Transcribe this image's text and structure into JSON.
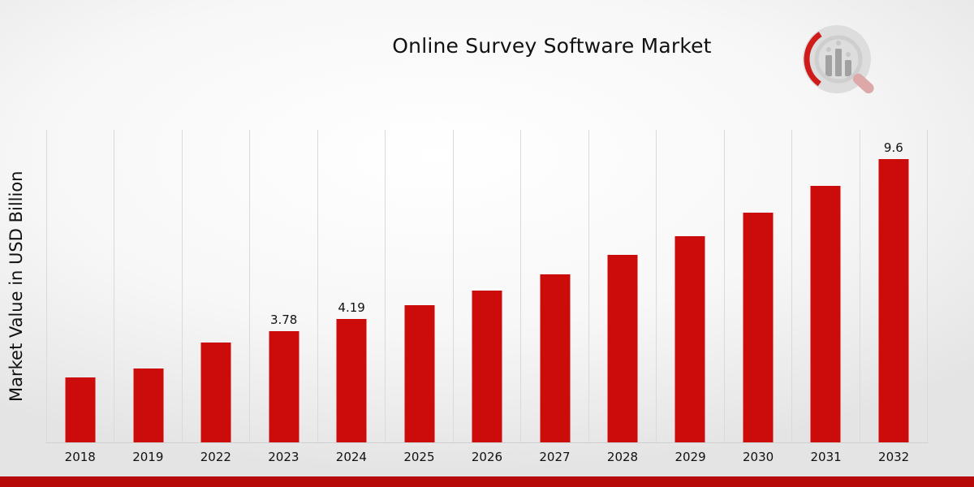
{
  "title": "Online Survey Software Market",
  "y_axis_label": "Market Value in USD Billion",
  "chart_data": {
    "type": "bar",
    "title": "Online Survey Software Market",
    "xlabel": "",
    "ylabel": "Market Value in USD Billion",
    "categories": [
      "2018",
      "2019",
      "2022",
      "2023",
      "2024",
      "2025",
      "2026",
      "2027",
      "2028",
      "2029",
      "2030",
      "2031",
      "2032"
    ],
    "values": [
      2.2,
      2.5,
      3.4,
      3.78,
      4.19,
      4.65,
      5.15,
      5.7,
      6.35,
      7.0,
      7.8,
      8.7,
      9.6
    ],
    "data_labels": {
      "2023": "3.78",
      "2024": "4.19",
      "2032": "9.6"
    },
    "ylim": [
      0,
      10.6
    ],
    "grid": "vertical-only",
    "legend": "none",
    "bar_color": "#cc0b0b"
  },
  "colors": {
    "bar": "#cc0b0b",
    "accent_strip": "#b80909",
    "gridline": "#dadada",
    "text": "#111111"
  },
  "logo": {
    "name": "market-research-bar-chart-magnifier-logo"
  }
}
